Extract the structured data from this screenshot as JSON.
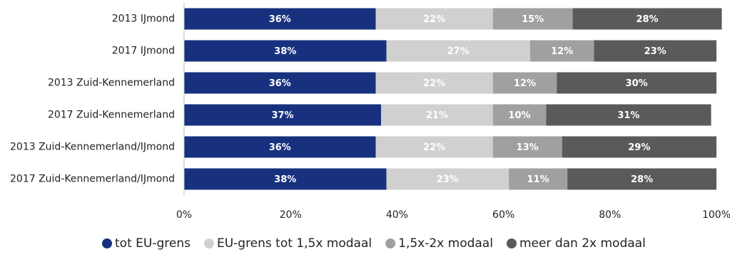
{
  "chart_data": {
    "type": "stacked_bar_horizontal",
    "categories": [
      "2013 IJmond",
      "2017 IJmond",
      "2013 Zuid-Kennemerland",
      "2017 Zuid-Kennemerland",
      "2013 Zuid-Kennemerland/IJmond",
      "2017 Zuid-Kennemerland/IJmond"
    ],
    "series": [
      {
        "name": "tot EU-grens",
        "color": "#17317f",
        "values": [
          36,
          38,
          36,
          37,
          36,
          38
        ],
        "value_labels": [
          "36%",
          "38%",
          "36%",
          "37%",
          "36%",
          "38%"
        ]
      },
      {
        "name": "EU-grens tot 1,5x modaal",
        "color": "#d0d0d0",
        "values": [
          22,
          27,
          22,
          21,
          22,
          23
        ],
        "value_labels": [
          "22%",
          "27%",
          "22%",
          "21%",
          "22%",
          "23%"
        ]
      },
      {
        "name": "1,5x-2x modaal",
        "color": "#a0a0a0",
        "values": [
          15,
          12,
          12,
          10,
          13,
          11
        ],
        "value_labels": [
          "15%",
          "12%",
          "12%",
          "10%",
          "13%",
          "11%"
        ]
      },
      {
        "name": "meer dan 2x modaal",
        "color": "#5a5a5a",
        "values": [
          28,
          23,
          30,
          31,
          29,
          28
        ],
        "value_labels": [
          "28%",
          "23%",
          "30%",
          "31%",
          "29%",
          "28%"
        ]
      }
    ],
    "xlim": [
      0,
      100
    ],
    "xticks": [
      {
        "value": 0,
        "label": "0%"
      },
      {
        "value": 20,
        "label": "20%"
      },
      {
        "value": 40,
        "label": "40%"
      },
      {
        "value": 60,
        "label": "60%"
      },
      {
        "value": 80,
        "label": "80%"
      },
      {
        "value": 100,
        "label": "100%"
      }
    ],
    "legend": "bottom"
  }
}
